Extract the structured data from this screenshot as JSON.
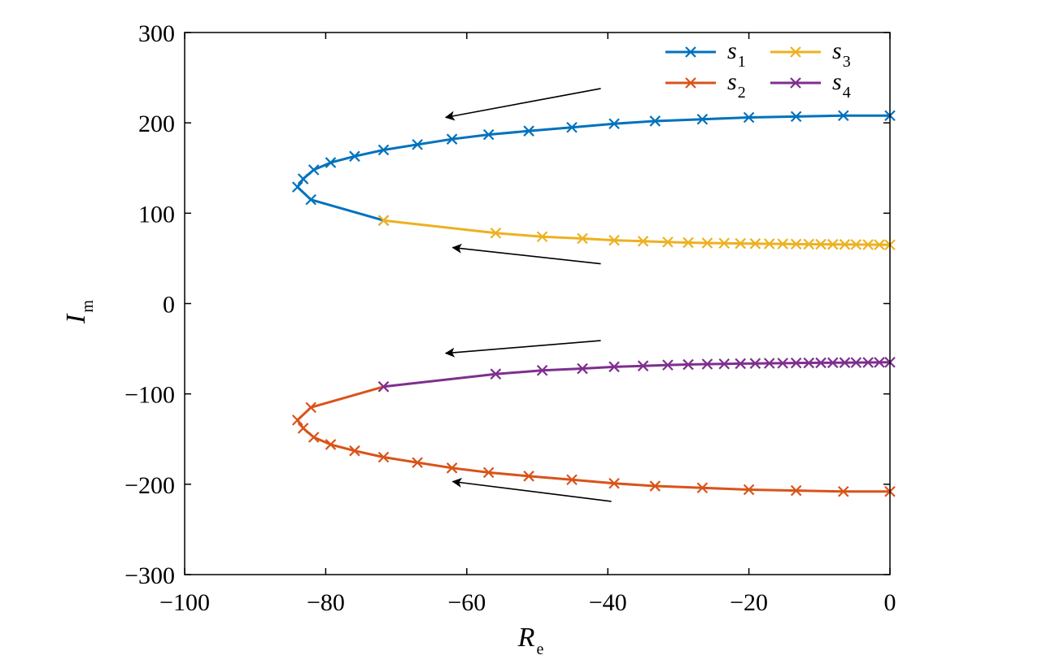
{
  "chart_data": {
    "type": "line",
    "title": "",
    "xlabel": {
      "main": "R",
      "sub": "e"
    },
    "ylabel": {
      "main": "I",
      "sub": "m"
    },
    "xlim": [
      -100,
      0
    ],
    "ylim": [
      -300,
      300
    ],
    "xticks": [
      -100,
      -80,
      -60,
      -40,
      -20,
      0
    ],
    "yticks": [
      -300,
      -200,
      -100,
      0,
      100,
      200,
      300
    ],
    "xtick_labels": [
      "−100",
      "−80",
      "−60",
      "−40",
      "−20",
      "0"
    ],
    "ytick_labels": [
      "−300",
      "−200",
      "−100",
      "0",
      "100",
      "200",
      "300"
    ],
    "grid": false,
    "legend_position": "top-right",
    "marker": "x",
    "series": [
      {
        "name": "s",
        "sub": "1",
        "color": "#0072BD",
        "points": [
          [
            0,
            208
          ],
          [
            -6.6,
            208
          ],
          [
            -13.3,
            207
          ],
          [
            -20,
            206
          ],
          [
            -26.6,
            204
          ],
          [
            -33.3,
            202
          ],
          [
            -39.1,
            199
          ],
          [
            -45.1,
            195
          ],
          [
            -51.2,
            191
          ],
          [
            -56.9,
            187
          ],
          [
            -62.1,
            182
          ],
          [
            -67.0,
            176
          ],
          [
            -71.8,
            170
          ],
          [
            -75.9,
            163
          ],
          [
            -79.3,
            156
          ],
          [
            -81.7,
            148
          ],
          [
            -83.2,
            138
          ],
          [
            -84.0,
            129
          ],
          [
            -82.1,
            115
          ],
          [
            -71.8,
            92
          ]
        ]
      },
      {
        "name": "s",
        "sub": "2",
        "color": "#D95319",
        "points": [
          [
            0,
            -208
          ],
          [
            -6.6,
            -208
          ],
          [
            -13.3,
            -207
          ],
          [
            -20,
            -206
          ],
          [
            -26.6,
            -204
          ],
          [
            -33.3,
            -202
          ],
          [
            -39.1,
            -199
          ],
          [
            -45.1,
            -195
          ],
          [
            -51.2,
            -191
          ],
          [
            -56.9,
            -187
          ],
          [
            -62.1,
            -182
          ],
          [
            -67.0,
            -176
          ],
          [
            -71.8,
            -170
          ],
          [
            -75.9,
            -163
          ],
          [
            -79.3,
            -156
          ],
          [
            -81.7,
            -148
          ],
          [
            -83.2,
            -138
          ],
          [
            -84.0,
            -129
          ],
          [
            -82.1,
            -115
          ],
          [
            -71.8,
            -92
          ]
        ]
      },
      {
        "name": "s",
        "sub": "3",
        "color": "#EDB120",
        "points": [
          [
            -71.8,
            92
          ],
          [
            -55.9,
            78
          ],
          [
            -49.3,
            74
          ],
          [
            -43.6,
            72
          ],
          [
            -39.1,
            70
          ],
          [
            -35.0,
            69
          ],
          [
            -31.5,
            68
          ],
          [
            -28.6,
            67.5
          ],
          [
            -25.9,
            67
          ],
          [
            -23.5,
            66.8
          ],
          [
            -21.2,
            66.5
          ],
          [
            -19.1,
            66.3
          ],
          [
            -17.1,
            66.1
          ],
          [
            -15.2,
            66
          ],
          [
            -13.3,
            65.8
          ],
          [
            -11.5,
            65.7
          ],
          [
            -9.8,
            65.6
          ],
          [
            -8.1,
            65.5
          ],
          [
            -6.4,
            65.4
          ],
          [
            -4.8,
            65.3
          ],
          [
            -3.1,
            65.2
          ],
          [
            -1.5,
            65.1
          ],
          [
            0,
            65
          ]
        ]
      },
      {
        "name": "s",
        "sub": "4",
        "color": "#7E2F8E",
        "points": [
          [
            -71.8,
            -92
          ],
          [
            -55.9,
            -78
          ],
          [
            -49.3,
            -74
          ],
          [
            -43.6,
            -72
          ],
          [
            -39.1,
            -70
          ],
          [
            -35.0,
            -69
          ],
          [
            -31.5,
            -68
          ],
          [
            -28.6,
            -67.5
          ],
          [
            -25.9,
            -67
          ],
          [
            -23.5,
            -66.8
          ],
          [
            -21.2,
            -66.5
          ],
          [
            -19.1,
            -66.3
          ],
          [
            -17.1,
            -66.1
          ],
          [
            -15.2,
            -66
          ],
          [
            -13.3,
            -65.8
          ],
          [
            -11.5,
            -65.7
          ],
          [
            -9.8,
            -65.6
          ],
          [
            -8.1,
            -65.5
          ],
          [
            -6.4,
            -65.4
          ],
          [
            -4.8,
            -65.3
          ],
          [
            -3.1,
            -65.2
          ],
          [
            -1.5,
            -65.1
          ],
          [
            0,
            -65
          ]
        ]
      }
    ],
    "annotations": [
      {
        "type": "arrow",
        "from": [
          -41,
          238
        ],
        "to": [
          -63,
          206
        ]
      },
      {
        "type": "arrow",
        "from": [
          -41,
          44
        ],
        "to": [
          -62,
          62
        ]
      },
      {
        "type": "arrow",
        "from": [
          -41,
          -41
        ],
        "to": [
          -63,
          -55
        ]
      },
      {
        "type": "arrow",
        "from": [
          -39.5,
          -219
        ],
        "to": [
          -62,
          -197
        ]
      }
    ]
  }
}
